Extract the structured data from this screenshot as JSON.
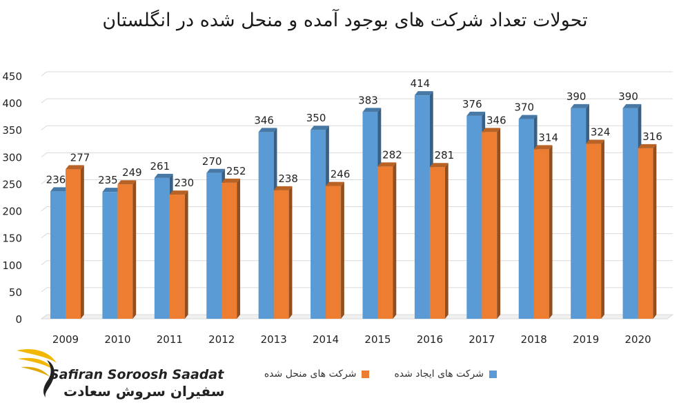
{
  "chart_data": {
    "type": "bar",
    "title": "تحولات تعداد شرکت های بوجود آمده و منحل شده در انگلستان",
    "categories": [
      "2009",
      "2010",
      "2011",
      "2012",
      "2013",
      "2014",
      "2015",
      "2016",
      "2017",
      "2018",
      "2019",
      "2020"
    ],
    "series": [
      {
        "name": "شرکت های ایجاد شده",
        "color": "#5B9BD5",
        "values": [
          236,
          235,
          261,
          270,
          346,
          350,
          383,
          414,
          376,
          370,
          390,
          390
        ]
      },
      {
        "name": "شرکت های منحل شده",
        "color": "#ED7D31",
        "values": [
          277,
          249,
          230,
          252,
          238,
          246,
          282,
          281,
          346,
          314,
          324,
          316
        ]
      }
    ],
    "ylim": [
      0,
      450
    ],
    "yticks": [
      0,
      50,
      100,
      150,
      200,
      250,
      300,
      350,
      400,
      450
    ],
    "grid": true,
    "legend": "bottom",
    "xlabel": "",
    "ylabel": ""
  },
  "logo": {
    "text_en": "Safiran Soroosh Saadat",
    "text_fa": "سفیران سروش سعادت"
  }
}
